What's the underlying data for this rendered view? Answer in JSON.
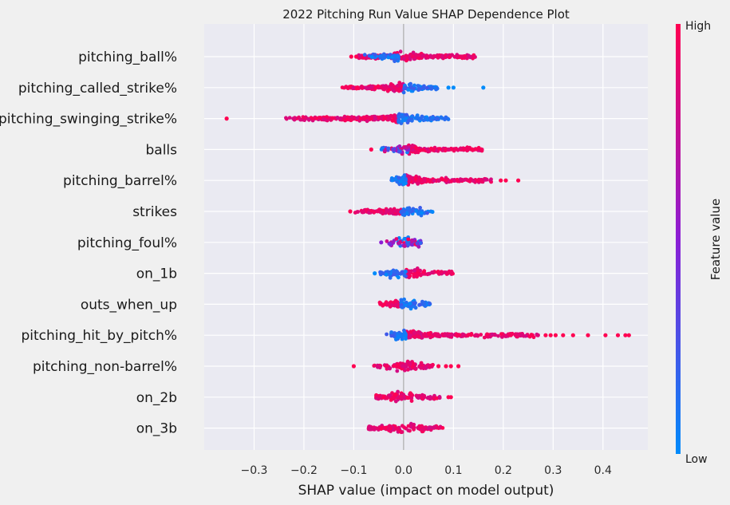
{
  "chart_data": {
    "type": "scatter",
    "title": "2022 Pitching Run Value SHAP Dependence Plot",
    "xlabel": "SHAP value (impact on model output)",
    "ylabel": "",
    "xlim": [
      -0.4,
      0.49
    ],
    "xticks": [
      -0.3,
      -0.2,
      -0.1,
      0.0,
      0.1,
      0.2,
      0.3,
      0.4
    ],
    "xtick_labels": [
      "−0.3",
      "−0.2",
      "−0.1",
      "0.0",
      "0.1",
      "0.2",
      "0.3",
      "0.4"
    ],
    "grid": true,
    "colorbar": {
      "label": "Feature value",
      "high_label": "High",
      "low_label": "Low",
      "high_color": "#ff0052",
      "mid_color": "#8b1ed5",
      "low_color": "#008bfb"
    },
    "features": [
      {
        "name": "pitching_ball%",
        "high_side": "right",
        "clusters": [
          {
            "range": [
              -0.09,
              0.15
            ],
            "dominant": "high"
          },
          {
            "range": [
              -0.08,
              -0.01
            ],
            "dominant": "low"
          }
        ],
        "outliers": [
          {
            "x": -0.105,
            "color": "high"
          },
          {
            "x": -0.095,
            "color": "high"
          }
        ]
      },
      {
        "name": "pitching_called_strike%",
        "high_side": "left",
        "clusters": [
          {
            "range": [
              -0.125,
              0.0
            ],
            "dominant": "high"
          },
          {
            "range": [
              0.0,
              0.07
            ],
            "dominant": "low"
          }
        ],
        "outliers": [
          {
            "x": 0.09,
            "color": "low"
          },
          {
            "x": 0.1,
            "color": "low"
          },
          {
            "x": 0.16,
            "color": "low"
          }
        ]
      },
      {
        "name": "pitching_swinging_strike%",
        "high_side": "left",
        "clusters": [
          {
            "range": [
              -0.24,
              -0.01
            ],
            "dominant": "high"
          },
          {
            "range": [
              -0.01,
              0.09
            ],
            "dominant": "low"
          }
        ],
        "outliers": [
          {
            "x": -0.355,
            "color": "high"
          }
        ]
      },
      {
        "name": "balls",
        "high_side": "right",
        "clusters": [
          {
            "range": [
              0.01,
              0.16
            ],
            "dominant": "high"
          },
          {
            "range": [
              -0.05,
              0.01
            ],
            "dominant": "mixed"
          }
        ],
        "outliers": [
          {
            "x": -0.065,
            "color": "high"
          }
        ]
      },
      {
        "name": "pitching_barrel%",
        "high_side": "right",
        "clusters": [
          {
            "range": [
              0.005,
              0.18
            ],
            "dominant": "high"
          },
          {
            "range": [
              -0.025,
              0.005
            ],
            "dominant": "low"
          }
        ],
        "outliers": [
          {
            "x": 0.195,
            "color": "high"
          },
          {
            "x": 0.205,
            "color": "high"
          },
          {
            "x": 0.23,
            "color": "high"
          }
        ]
      },
      {
        "name": "strikes",
        "high_side": "left",
        "clusters": [
          {
            "range": [
              -0.1,
              -0.005
            ],
            "dominant": "high"
          },
          {
            "range": [
              -0.005,
              0.06
            ],
            "dominant": "low"
          }
        ],
        "outliers": [
          {
            "x": -0.107,
            "color": "high"
          }
        ]
      },
      {
        "name": "pitching_foul%",
        "high_side": "left",
        "clusters": [
          {
            "range": [
              -0.035,
              0.035
            ],
            "dominant": "mixed"
          }
        ],
        "outliers": [
          {
            "x": -0.045,
            "color": "mid"
          }
        ]
      },
      {
        "name": "on_1b",
        "high_side": "right",
        "clusters": [
          {
            "range": [
              0.005,
              0.1
            ],
            "dominant": "high"
          },
          {
            "range": [
              -0.05,
              0.005
            ],
            "dominant": "low"
          }
        ],
        "outliers": [
          {
            "x": -0.058,
            "color": "low"
          }
        ]
      },
      {
        "name": "outs_when_up",
        "high_side": "left",
        "clusters": [
          {
            "range": [
              -0.05,
              -0.005
            ],
            "dominant": "high"
          },
          {
            "range": [
              -0.005,
              0.055
            ],
            "dominant": "low"
          }
        ],
        "outliers": []
      },
      {
        "name": "pitching_hit_by_pitch%",
        "high_side": "right",
        "clusters": [
          {
            "range": [
              0.005,
              0.27
            ],
            "dominant": "high"
          },
          {
            "range": [
              -0.035,
              0.005
            ],
            "dominant": "low"
          }
        ],
        "outliers": [
          {
            "x": 0.285,
            "color": "high"
          },
          {
            "x": 0.295,
            "color": "high"
          },
          {
            "x": 0.305,
            "color": "high"
          },
          {
            "x": 0.32,
            "color": "high"
          },
          {
            "x": 0.34,
            "color": "high"
          },
          {
            "x": 0.37,
            "color": "high"
          },
          {
            "x": 0.405,
            "color": "high"
          },
          {
            "x": 0.43,
            "color": "high"
          },
          {
            "x": 0.445,
            "color": "high"
          },
          {
            "x": 0.452,
            "color": "high"
          }
        ]
      },
      {
        "name": "pitching_non-barrel%",
        "high_side": "mixed",
        "clusters": [
          {
            "range": [
              -0.065,
              0.06
            ],
            "dominant": "high"
          }
        ],
        "outliers": [
          {
            "x": -0.1,
            "color": "high"
          },
          {
            "x": 0.07,
            "color": "high"
          },
          {
            "x": 0.085,
            "color": "high"
          },
          {
            "x": 0.095,
            "color": "high"
          },
          {
            "x": 0.11,
            "color": "high"
          }
        ]
      },
      {
        "name": "on_2b",
        "high_side": "mixed",
        "clusters": [
          {
            "range": [
              -0.055,
              0.075
            ],
            "dominant": "high"
          }
        ],
        "outliers": [
          {
            "x": 0.09,
            "color": "high"
          },
          {
            "x": 0.095,
            "color": "high"
          }
        ]
      },
      {
        "name": "on_3b",
        "high_side": "mixed",
        "clusters": [
          {
            "range": [
              -0.07,
              0.08
            ],
            "dominant": "high"
          }
        ],
        "outliers": []
      }
    ]
  }
}
